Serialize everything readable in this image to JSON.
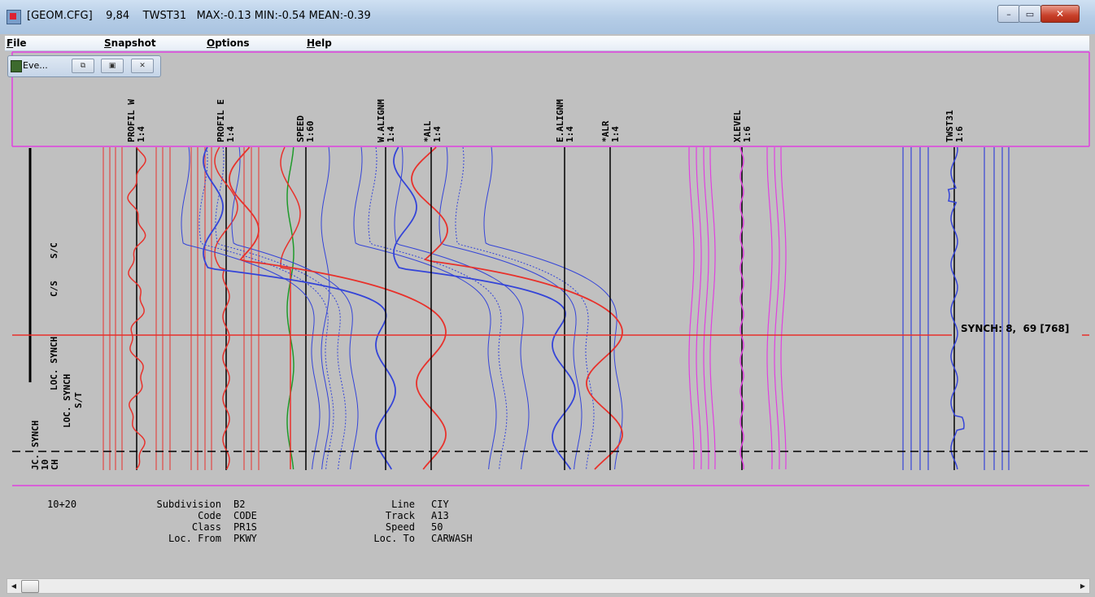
{
  "window": {
    "title": "[GEOM.CFG]    9,84    TWST31   MAX:-0.13 MIN:-0.54 MEAN:-0.39",
    "controls": {
      "minimize": "–",
      "maximize": "▭",
      "close": "✕"
    }
  },
  "menu": {
    "file": "File",
    "snapshot": "Snapshot",
    "options": "Options",
    "help": "Help"
  },
  "mdi_child": {
    "title": "Eve...",
    "restore": "⧉",
    "maximize": "▣",
    "close": "✕"
  },
  "channels": [
    {
      "name": "PROFIL W",
      "scale": "1:4"
    },
    {
      "name": "PROFIL E",
      "scale": "1:4"
    },
    {
      "name": "SPEED",
      "scale": "1:60"
    },
    {
      "name": "W.ALIGNM",
      "scale": "1:4"
    },
    {
      "name": "*ALL",
      "scale": "1:4"
    },
    {
      "name": "E.ALIGNM",
      "scale": "1:4"
    },
    {
      "name": "*ALR",
      "scale": "1:4"
    },
    {
      "name": "XLEVEL",
      "scale": "1:6"
    },
    {
      "name": "TWST31",
      "scale": "1:6"
    }
  ],
  "events": {
    "sc": "S/C",
    "cs": "C/S",
    "st": "S/T",
    "loc_synch": "LOC. SYNCH",
    "loc_synch2": "LOC. SYNCH",
    "synch": "SYNCH",
    "jc": "JC.",
    "ten": "10",
    "ch": "CH"
  },
  "synch": "SYNCH: 8,  69 [768]",
  "info": {
    "position": "10+20",
    "subdivision_label": "Subdivision",
    "subdivision": "B2",
    "code_label": "Code",
    "code": "CODE",
    "class_label": "Class",
    "class": "PR1S",
    "loc_from_label": "Loc. From",
    "loc_from": "PKWY",
    "line_label": "Line",
    "line": "CIY",
    "track_label": "Track",
    "track": "A13",
    "speed_label": "Speed",
    "speed": "50",
    "loc_to_label": "Loc. To",
    "loc_to": "CARWASH"
  },
  "colors": {
    "red": "#e8312b",
    "blue": "#3444d8",
    "green": "#1e9a2a",
    "magenta": "#e040e0",
    "black": "#000000",
    "background": "#c0c0c0"
  }
}
